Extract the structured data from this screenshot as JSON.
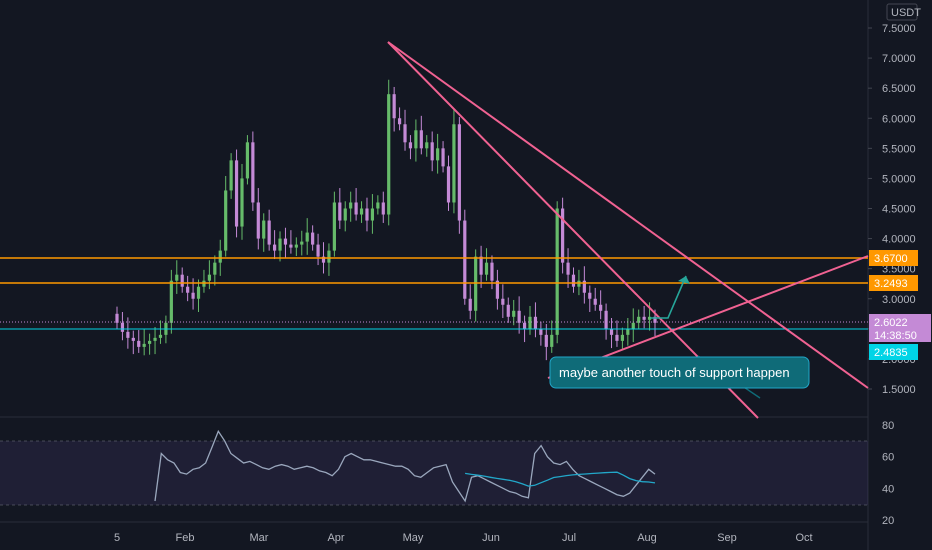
{
  "currency": "USDT",
  "colors": {
    "background": "#131722",
    "up": "#66bb6a",
    "down": "#c48ad6",
    "trendline": "#f06292",
    "resistance": "#ff9800",
    "current_price": "#c48ad6",
    "support_price": "#00d4e6",
    "annotation_bg": "#0f6b78",
    "rsi": "#9aa7bd",
    "rsi_ma": "#22a7c9",
    "arrow": "#26a69a"
  },
  "price_axis": {
    "ticks": [
      "7.5000",
      "7.0000",
      "6.5000",
      "6.0000",
      "5.5000",
      "5.0000",
      "4.5000",
      "4.0000",
      "3.5000",
      "3.0000",
      "2.5000",
      "2.0000",
      "1.5000"
    ]
  },
  "time_axis": {
    "ticks": [
      "5",
      "Feb",
      "Mar",
      "Apr",
      "May",
      "Jun",
      "Jul",
      "Aug",
      "Sep",
      "Oct"
    ]
  },
  "rsi_axis": {
    "ticks": [
      "80",
      "60",
      "40",
      "20"
    ]
  },
  "price_tags": {
    "upper_resistance": "3.6700",
    "lower_resistance": "3.2493",
    "current_price": "2.6022",
    "countdown": "14:38:50",
    "support": "2.4835"
  },
  "annotation": "maybe another touch of support happen",
  "chart_data": {
    "type": "candlestick",
    "symbol_currency": "USDT",
    "x_labels": [
      "5",
      "Feb",
      "Mar",
      "Apr",
      "May",
      "Jun",
      "Jul",
      "Aug",
      "Sep",
      "Oct"
    ],
    "y_range": [
      1.2,
      7.9
    ],
    "close_series": [
      2.6,
      2.45,
      2.35,
      2.3,
      2.2,
      2.25,
      2.3,
      2.35,
      2.4,
      2.6,
      3.3,
      3.4,
      3.2,
      3.1,
      3.0,
      3.2,
      3.3,
      3.4,
      3.6,
      3.8,
      4.8,
      5.3,
      4.2,
      5.0,
      5.6,
      4.6,
      4.0,
      4.3,
      3.9,
      3.8,
      4.0,
      3.9,
      3.85,
      3.9,
      3.95,
      4.1,
      3.9,
      3.7,
      3.6,
      3.8,
      4.6,
      4.3,
      4.5,
      4.6,
      4.4,
      4.5,
      4.3,
      4.5,
      4.6,
      4.4,
      6.4,
      6.0,
      5.9,
      5.6,
      5.5,
      5.8,
      5.5,
      5.6,
      5.3,
      5.5,
      5.2,
      4.6,
      5.9,
      4.3,
      3.0,
      2.8,
      3.7,
      3.4,
      3.6,
      3.3,
      3.0,
      2.9,
      2.7,
      2.8,
      2.6,
      2.5,
      2.7,
      2.5,
      2.4,
      2.2,
      2.4,
      4.5,
      3.6,
      3.4,
      3.2,
      3.3,
      3.1,
      3.0,
      2.9,
      2.8,
      2.5,
      2.4,
      2.3,
      2.4,
      2.5,
      2.6,
      2.7,
      2.65,
      2.7,
      2.6
    ],
    "horizontal_levels": [
      3.67,
      3.2493
    ],
    "current_price": 2.6022,
    "support_price": 2.4835,
    "rsi": {
      "range": [
        20,
        80
      ],
      "band": [
        30,
        70
      ],
      "values": [
        32,
        62,
        58,
        56,
        50,
        49,
        52,
        53,
        56,
        66,
        76,
        70,
        62,
        59,
        56,
        57,
        55,
        53,
        52,
        54,
        55,
        54,
        52,
        53,
        54,
        53,
        51,
        50,
        48,
        52,
        60,
        62,
        60,
        58,
        58,
        57,
        56,
        55,
        54,
        54,
        52,
        48,
        47,
        50,
        53,
        54,
        55,
        44,
        38,
        32,
        47,
        48,
        46,
        44,
        42,
        40,
        38,
        37,
        35,
        34,
        62,
        67,
        60,
        56,
        55,
        57,
        52,
        48,
        46,
        44,
        42,
        40,
        38,
        36,
        35,
        37,
        42,
        47,
        52,
        49
      ]
    }
  }
}
